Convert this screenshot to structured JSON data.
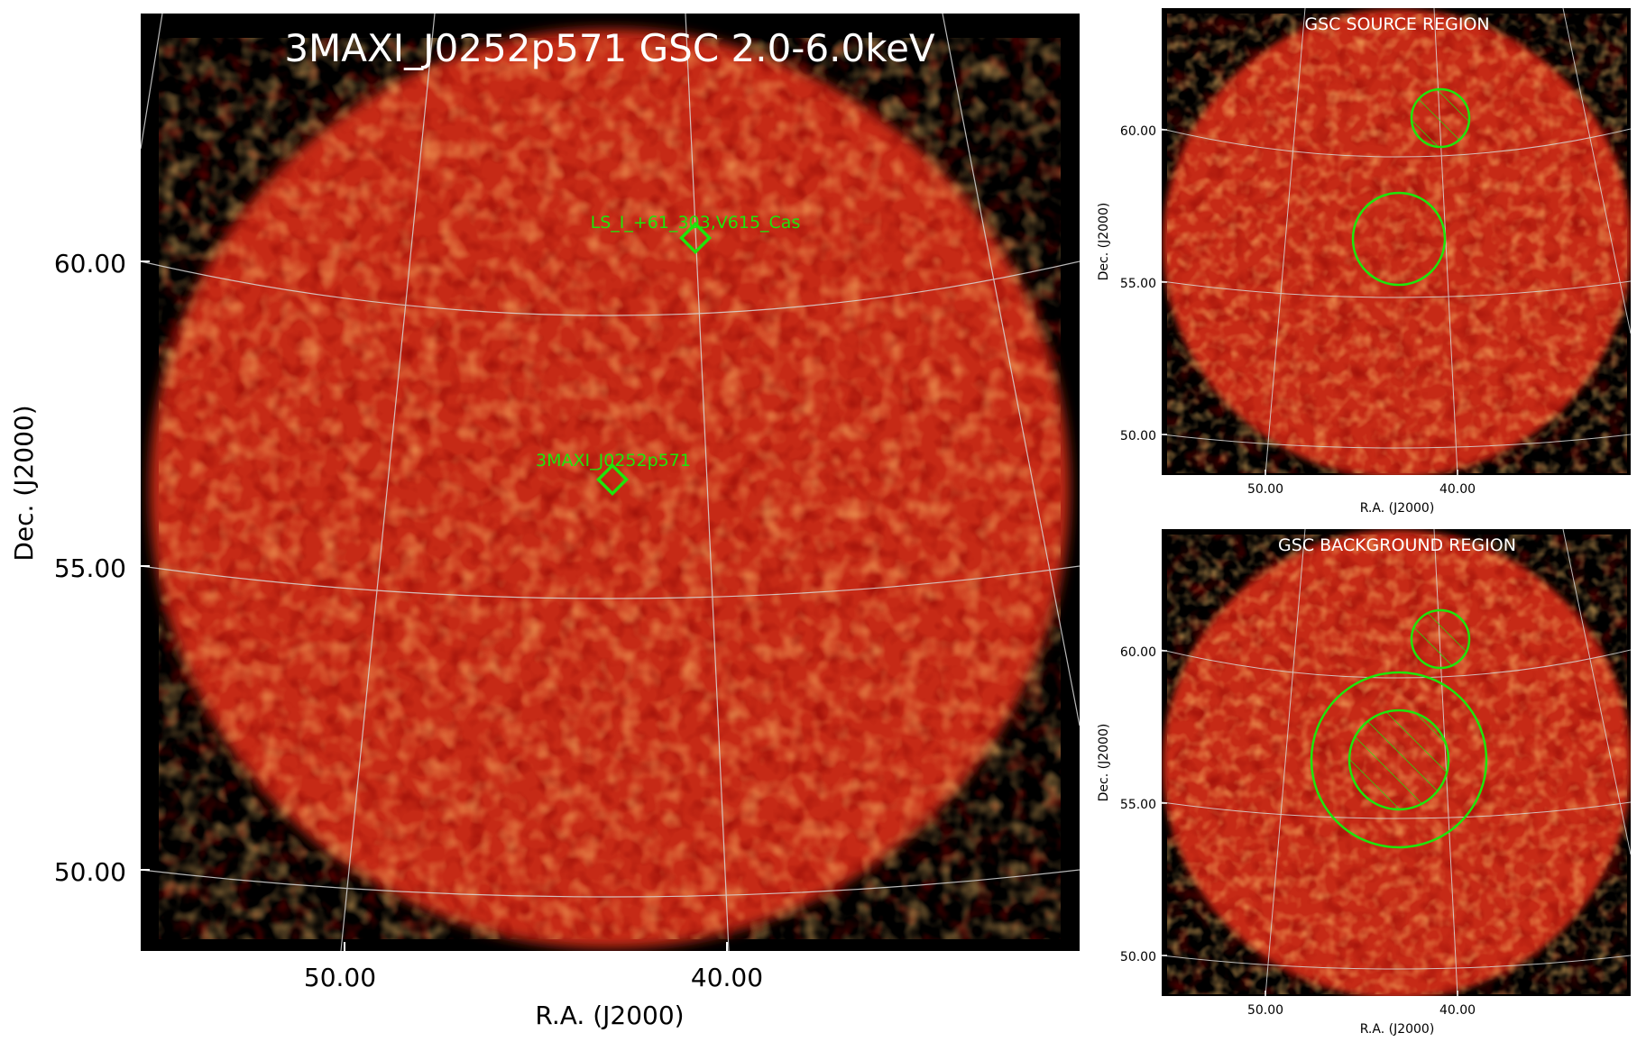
{
  "main": {
    "title": "3MAXI_J0252p571 GSC 2.0-6.0keV",
    "ytick_labels": [
      "60.00",
      "55.00",
      "50.00"
    ],
    "xtick_labels": [
      "50.00",
      "40.00"
    ],
    "ylabel": "Dec. (J2000)",
    "xlabel": "R.A. (J2000)",
    "sources": [
      {
        "name": "LS_I_+61_303,V615_Cas"
      },
      {
        "name": "3MAXI_J0252p571"
      }
    ]
  },
  "source_panel": {
    "title": "GSC SOURCE REGION",
    "ytick_labels": [
      "60.00",
      "55.00",
      "50.00"
    ],
    "xtick_labels": [
      "50.00",
      "40.00"
    ],
    "ylabel": "Dec. (J2000)",
    "xlabel": "R.A. (J2000)"
  },
  "background_panel": {
    "title": "GSC BACKGROUND REGION",
    "ytick_labels": [
      "60.00",
      "55.00",
      "50.00"
    ],
    "xtick_labels": [
      "50.00",
      "40.00"
    ],
    "ylabel": "Dec. (J2000)",
    "xlabel": "R.A. (J2000)"
  },
  "colors": {
    "background": "#000000",
    "map": "#c8260f",
    "region": "#1ee60a",
    "grid": "#d8d8d8"
  }
}
